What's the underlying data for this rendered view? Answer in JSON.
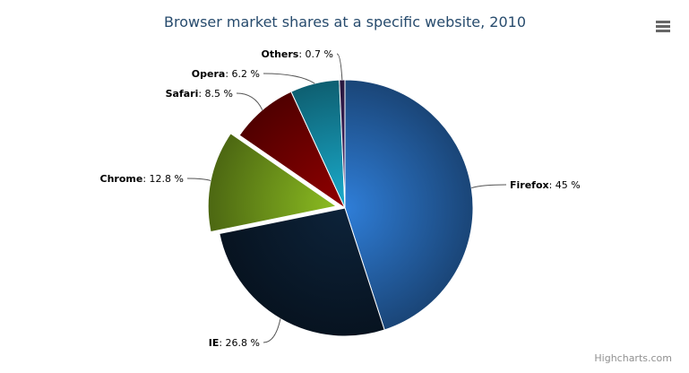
{
  "chart_data": {
    "type": "pie",
    "title": "Browser market shares at a specific website, 2010",
    "categories": [
      "Firefox",
      "IE",
      "Chrome",
      "Safari",
      "Opera",
      "Others"
    ],
    "values": [
      45.0,
      26.8,
      12.8,
      8.5,
      6.2,
      0.7
    ],
    "labels": [
      "45 %",
      "26.8 %",
      "12.8 %",
      "8.5 %",
      "6.2 %",
      "0.7 %"
    ],
    "sliced": [
      "Chrome"
    ],
    "colors": [
      "#2f7ed8",
      "#0d233a",
      "#8bbc21",
      "#910000",
      "#1aadce",
      "#492970"
    ]
  },
  "credits": "Highcharts.com",
  "menu_icon": "hamburger-menu-icon"
}
